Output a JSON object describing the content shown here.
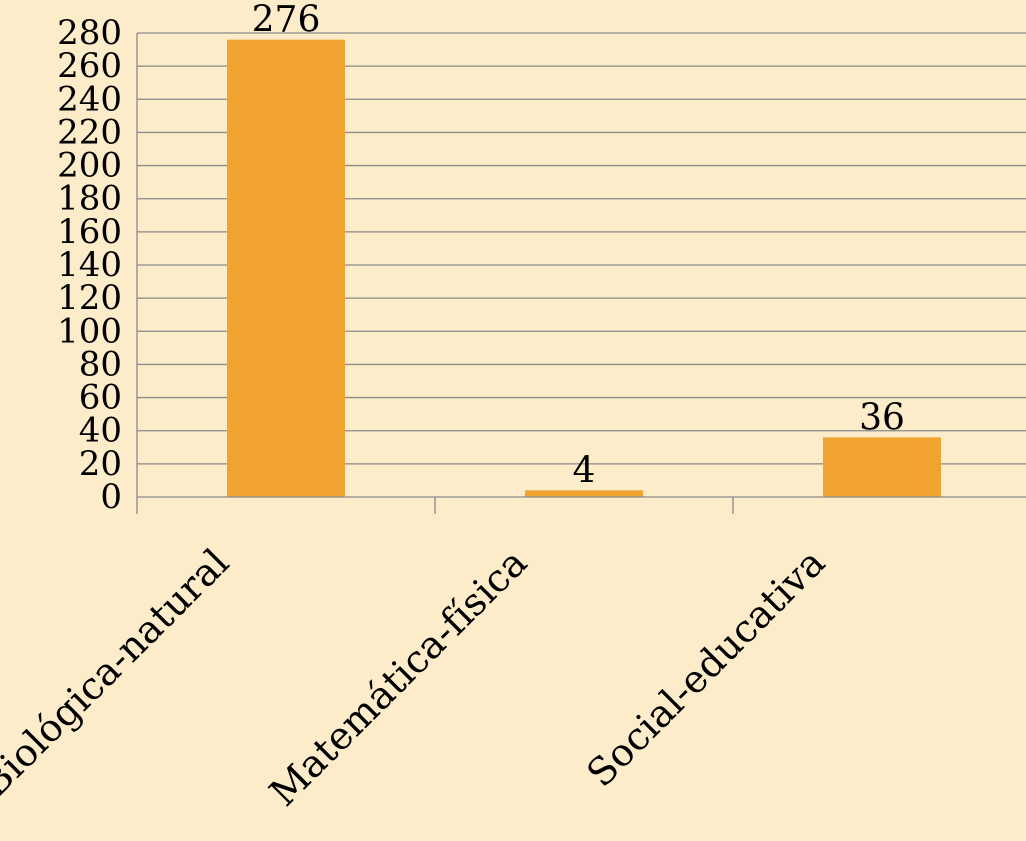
{
  "chart_data": {
    "type": "bar",
    "categories": [
      "Biológica-natural",
      "Matemática-física",
      "Social-educativa"
    ],
    "values": [
      276,
      4,
      36
    ],
    "data_labels": [
      "276",
      "4",
      "36"
    ],
    "ylim": [
      0,
      280
    ],
    "y_ticks": [
      0,
      20,
      40,
      60,
      80,
      100,
      120,
      140,
      160,
      180,
      200,
      220,
      240,
      260,
      280
    ],
    "grid": true,
    "legend": "none",
    "colors": {
      "bar": "#f0a330",
      "grid": "#8a8a8a",
      "background": "#fcecc9"
    }
  }
}
